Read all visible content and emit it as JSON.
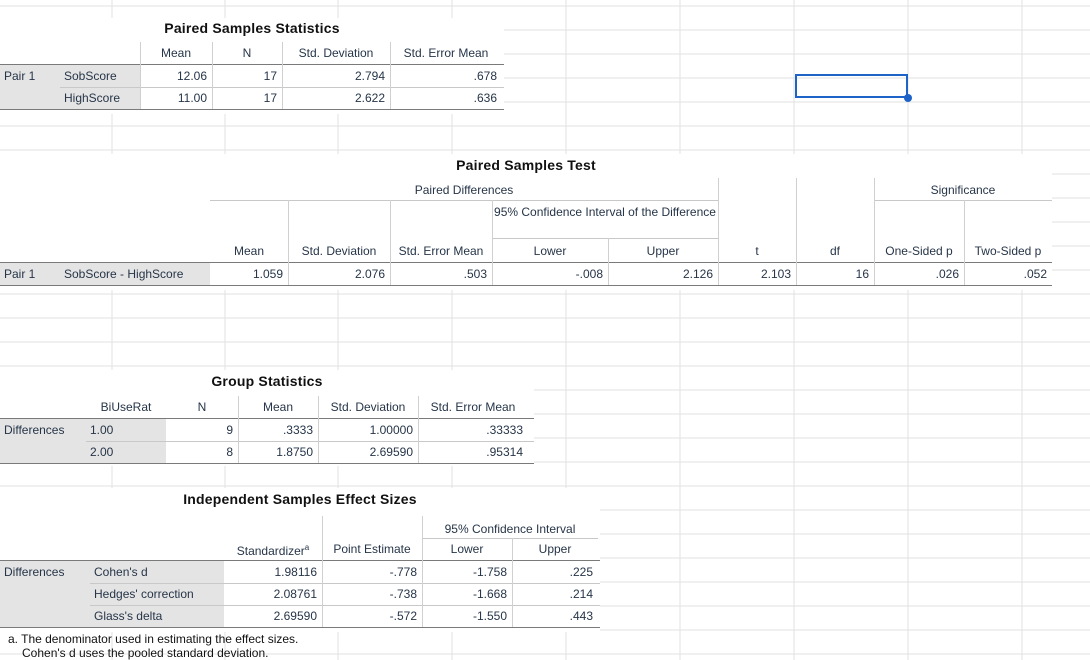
{
  "paired_stats": {
    "title": "Paired Samples Statistics",
    "headers": [
      "Mean",
      "N",
      "Std. Deviation",
      "Std. Error Mean"
    ],
    "pair_label": "Pair 1",
    "rows": [
      {
        "label": "SobScore",
        "mean": "12.06",
        "n": "17",
        "sd": "2.794",
        "sem": ".678"
      },
      {
        "label": "HighScore",
        "mean": "11.00",
        "n": "17",
        "sd": "2.622",
        "sem": ".636"
      }
    ]
  },
  "paired_test": {
    "title": "Paired Samples Test",
    "group_paired": "Paired Differences",
    "group_ci": "95% Confidence Interval of the Difference",
    "group_sig": "Significance",
    "headers": [
      "Mean",
      "Std. Deviation",
      "Std. Error Mean",
      "Lower",
      "Upper",
      "t",
      "df",
      "One-Sided p",
      "Two-Sided p"
    ],
    "pair_label": "Pair 1",
    "row": {
      "label": "SobScore - HighScore",
      "mean": "1.059",
      "sd": "2.076",
      "sem": ".503",
      "lower": "-.008",
      "upper": "2.126",
      "t": "2.103",
      "df": "16",
      "one_p": ".026",
      "two_p": ".052"
    }
  },
  "group_stats": {
    "title": "Group Statistics",
    "headers": [
      "BiUseRat",
      "N",
      "Mean",
      "Std. Deviation",
      "Std. Error Mean"
    ],
    "row_label": "Differences",
    "rows": [
      {
        "group": "1.00",
        "n": "9",
        "mean": ".3333",
        "sd": "1.00000",
        "sem": ".33333"
      },
      {
        "group": "2.00",
        "n": "8",
        "mean": "1.8750",
        "sd": "2.69590",
        "sem": ".95314"
      }
    ]
  },
  "effect_sizes": {
    "title": "Independent Samples Effect Sizes",
    "group_ci": "95% Confidence Interval",
    "headers": [
      "Standardizer",
      "Point Estimate",
      "Lower",
      "Upper"
    ],
    "superscript": "a",
    "row_label": "Differences",
    "rows": [
      {
        "label": "Cohen's d",
        "std": "1.98116",
        "pe": "-.778",
        "lower": "-1.758",
        "upper": ".225"
      },
      {
        "label": "Hedges' correction",
        "std": "2.08761",
        "pe": "-.738",
        "lower": "-1.668",
        "upper": ".214"
      },
      {
        "label": "Glass's delta",
        "std": "2.69590",
        "pe": "-.572",
        "lower": "-1.550",
        "upper": ".443"
      }
    ],
    "footnote_a": "a. The denominator used in estimating the effect sizes.",
    "footnote_b": "Cohen's d uses the pooled standard deviation."
  }
}
